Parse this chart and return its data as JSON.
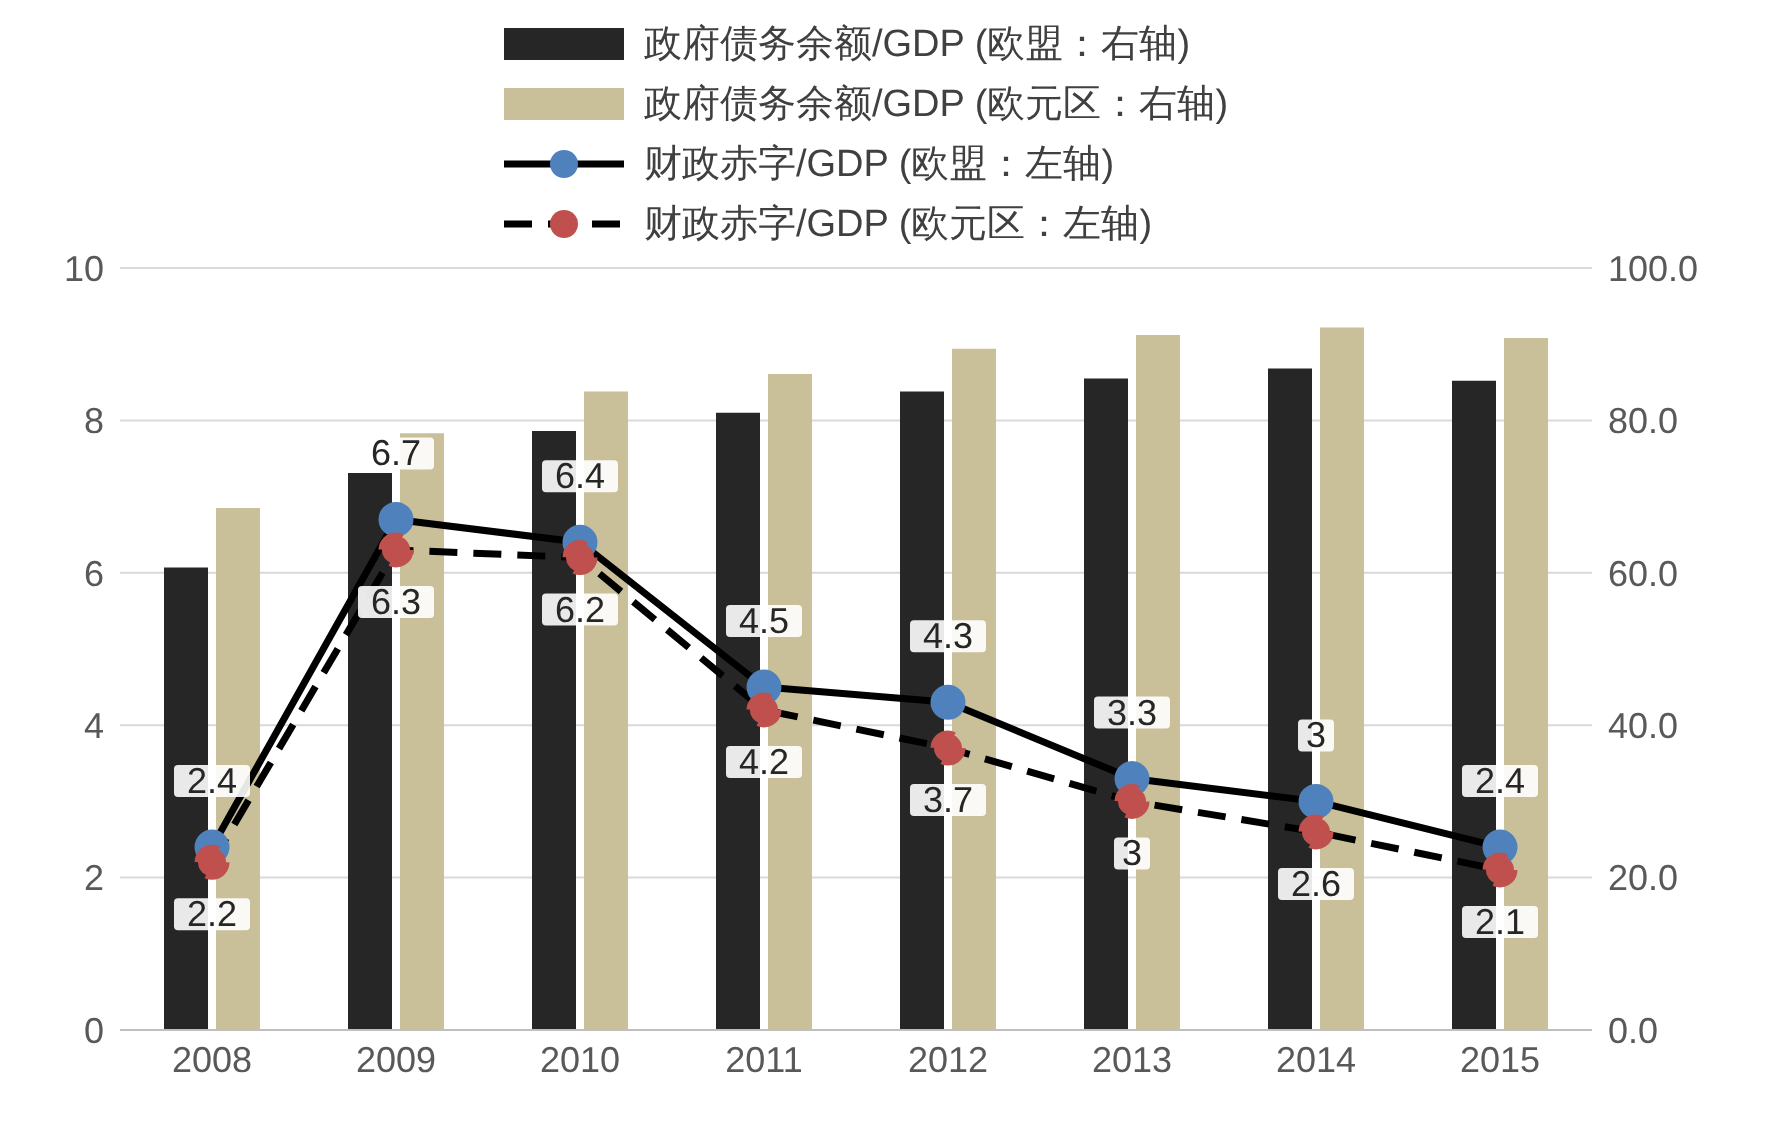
{
  "chart_data": {
    "type": "bar",
    "categories": [
      "2008",
      "2009",
      "2010",
      "2011",
      "2012",
      "2013",
      "2014",
      "2015"
    ],
    "series": [
      {
        "name": "政府债务余额/GDP (欧盟：右轴)",
        "axis": "y2",
        "color": "#262626",
        "values": [
          60.7,
          73.1,
          78.6,
          81.0,
          83.8,
          85.5,
          86.8,
          85.2
        ]
      },
      {
        "name": "政府债务余额/GDP (欧元区：右轴)",
        "axis": "y2",
        "color": "#c9c09a",
        "values": [
          68.5,
          78.3,
          83.8,
          86.1,
          89.4,
          91.2,
          92.2,
          90.8
        ]
      },
      {
        "name": "财政赤字/GDP (欧盟：左轴)",
        "type": "line",
        "color": "#4f81bd",
        "line_style": "solid",
        "values": [
          2.4,
          6.7,
          6.4,
          4.5,
          4.3,
          3.3,
          3,
          2.4
        ],
        "value_labels": [
          "2.4",
          "6.7",
          "6.4",
          "4.5",
          "4.3",
          "3.3",
          "3",
          "2.4"
        ]
      },
      {
        "name": "财政赤字/GDP (欧元区：左轴)",
        "type": "line",
        "color": "#c0504d",
        "line_style": "dashed",
        "values": [
          2.2,
          6.3,
          6.2,
          4.2,
          3.7,
          3,
          2.6,
          2.1
        ],
        "value_labels": [
          "2.2",
          "6.3",
          "6.2",
          "4.2",
          "3.7",
          "3",
          "2.6",
          "2.1"
        ]
      }
    ],
    "ylim": [
      0,
      10
    ],
    "yticks": [
      0,
      2,
      4,
      6,
      8,
      10
    ],
    "y2lim": [
      0,
      100
    ],
    "y2ticks": [
      {
        "value": 0,
        "label": "0.0"
      },
      {
        "value": 20,
        "label": "20.0"
      },
      {
        "value": 40,
        "label": "40.0"
      },
      {
        "value": 60,
        "label": "60.0"
      },
      {
        "value": 80,
        "label": "80.0"
      },
      {
        "value": 100,
        "label": "100.0"
      }
    ],
    "grid": "y",
    "legend": "top",
    "marker": "circle"
  }
}
